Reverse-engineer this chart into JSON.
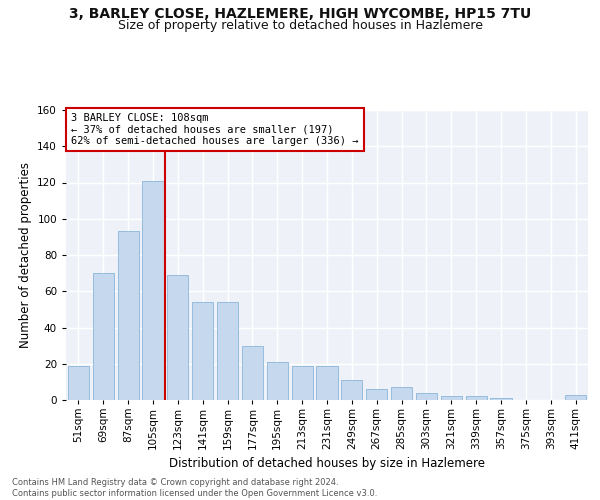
{
  "title1": "3, BARLEY CLOSE, HAZLEMERE, HIGH WYCOMBE, HP15 7TU",
  "title2": "Size of property relative to detached houses in Hazlemere",
  "xlabel": "Distribution of detached houses by size in Hazlemere",
  "ylabel": "Number of detached properties",
  "categories": [
    "51sqm",
    "69sqm",
    "87sqm",
    "105sqm",
    "123sqm",
    "141sqm",
    "159sqm",
    "177sqm",
    "195sqm",
    "213sqm",
    "231sqm",
    "249sqm",
    "267sqm",
    "285sqm",
    "303sqm",
    "321sqm",
    "339sqm",
    "357sqm",
    "375sqm",
    "393sqm",
    "411sqm"
  ],
  "values": [
    19,
    70,
    93,
    121,
    69,
    54,
    54,
    30,
    21,
    19,
    19,
    11,
    6,
    7,
    4,
    2,
    2,
    1,
    0,
    0,
    3
  ],
  "bar_color": "#c5d8ee",
  "bar_edge_color": "#7aadd4",
  "vline_color": "#cc0000",
  "vline_x": 3.5,
  "annotation_text": "3 BARLEY CLOSE: 108sqm\n← 37% of detached houses are smaller (197)\n62% of semi-detached houses are larger (336) →",
  "annotation_box_color": "#ffffff",
  "annotation_box_edge_color": "#cc0000",
  "footer_text": "Contains HM Land Registry data © Crown copyright and database right 2024.\nContains public sector information licensed under the Open Government Licence v3.0.",
  "ylim": [
    0,
    160
  ],
  "yticks": [
    0,
    20,
    40,
    60,
    80,
    100,
    120,
    140,
    160
  ],
  "background_color": "#eef2f8",
  "grid_color": "#ffffff",
  "title1_fontsize": 10,
  "title2_fontsize": 9,
  "xlabel_fontsize": 8.5,
  "ylabel_fontsize": 8.5,
  "tick_fontsize": 7.5,
  "annotation_fontsize": 7.5,
  "footer_fontsize": 6.0
}
